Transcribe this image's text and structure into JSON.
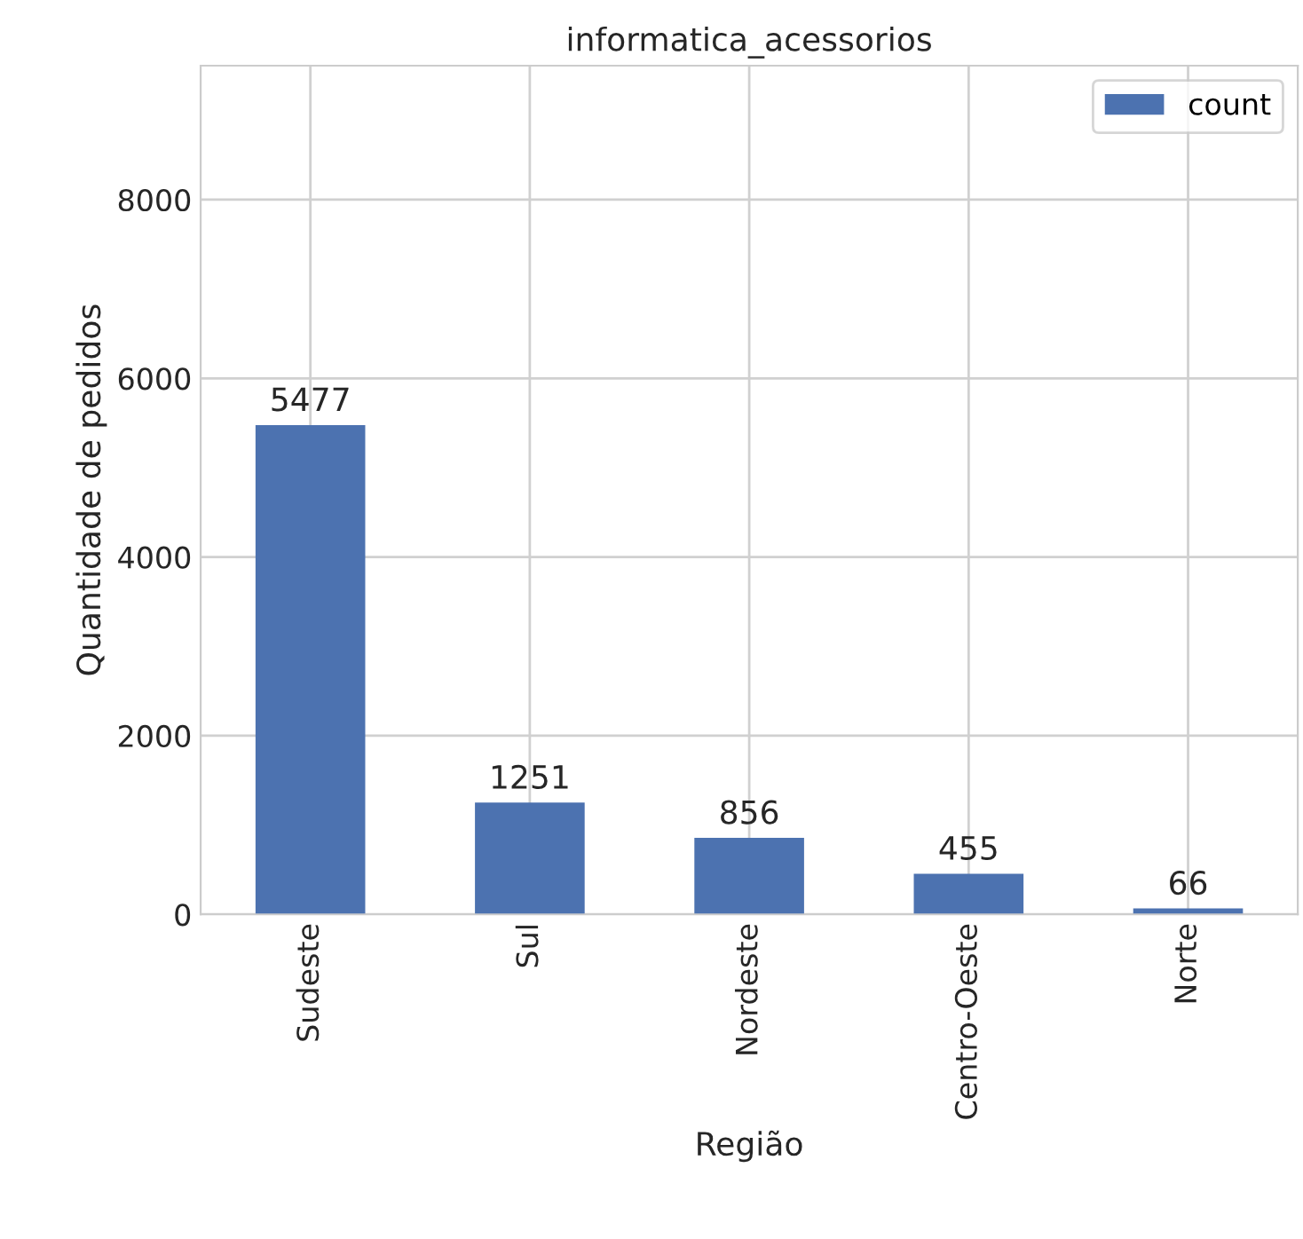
{
  "chart_data": {
    "type": "bar",
    "title": "informatica_acessorios",
    "xlabel": "Região",
    "ylabel": "Quantidade de pedidos",
    "categories": [
      "Sudeste",
      "Sul",
      "Nordeste",
      "Centro-Oeste",
      "Norte"
    ],
    "series": [
      {
        "name": "count",
        "color": "#4c72b0",
        "values": [
          5477,
          1251,
          856,
          455,
          66
        ]
      }
    ],
    "ylim": [
      0,
      9500
    ],
    "yticks": [
      0,
      2000,
      4000,
      6000,
      8000
    ],
    "grid": true,
    "legend": "top right",
    "data_labels": true
  }
}
